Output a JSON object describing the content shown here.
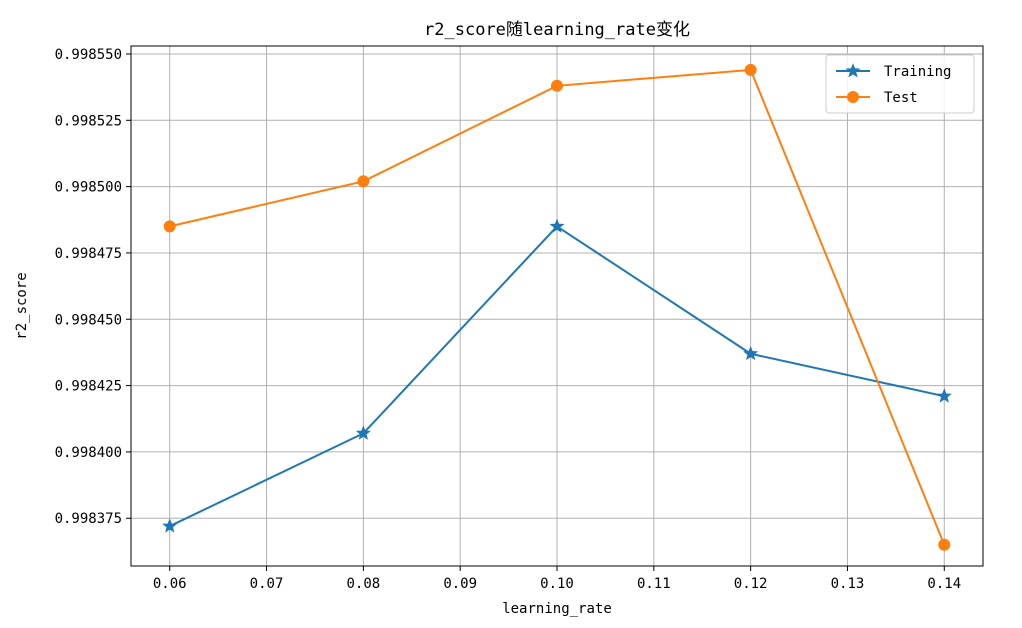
{
  "chart_data": {
    "type": "line",
    "title": "r2_score随learning_rate变化",
    "xlabel": "learning_rate",
    "ylabel": "r2_score",
    "x": [
      0.06,
      0.08,
      0.1,
      0.12,
      0.14
    ],
    "xticks": [
      "0.06",
      "0.07",
      "0.08",
      "0.09",
      "0.10",
      "0.11",
      "0.12",
      "0.13",
      "0.14"
    ],
    "yticks": [
      "0.998375",
      "0.998400",
      "0.998425",
      "0.998450",
      "0.998475",
      "0.998500",
      "0.998525",
      "0.998550"
    ],
    "xlim": [
      0.056,
      0.144
    ],
    "ylim": [
      0.998357,
      0.998553
    ],
    "grid": true,
    "legend_position": "top-right",
    "series": [
      {
        "name": "Training",
        "color": "#1f77b4",
        "marker": "star",
        "values": [
          0.998372,
          0.998407,
          0.998485,
          0.998437,
          0.998421
        ]
      },
      {
        "name": "Test",
        "color": "#ff7f0e",
        "marker": "circle",
        "values": [
          0.998485,
          0.998502,
          0.998538,
          0.998544,
          0.998365
        ]
      }
    ]
  }
}
